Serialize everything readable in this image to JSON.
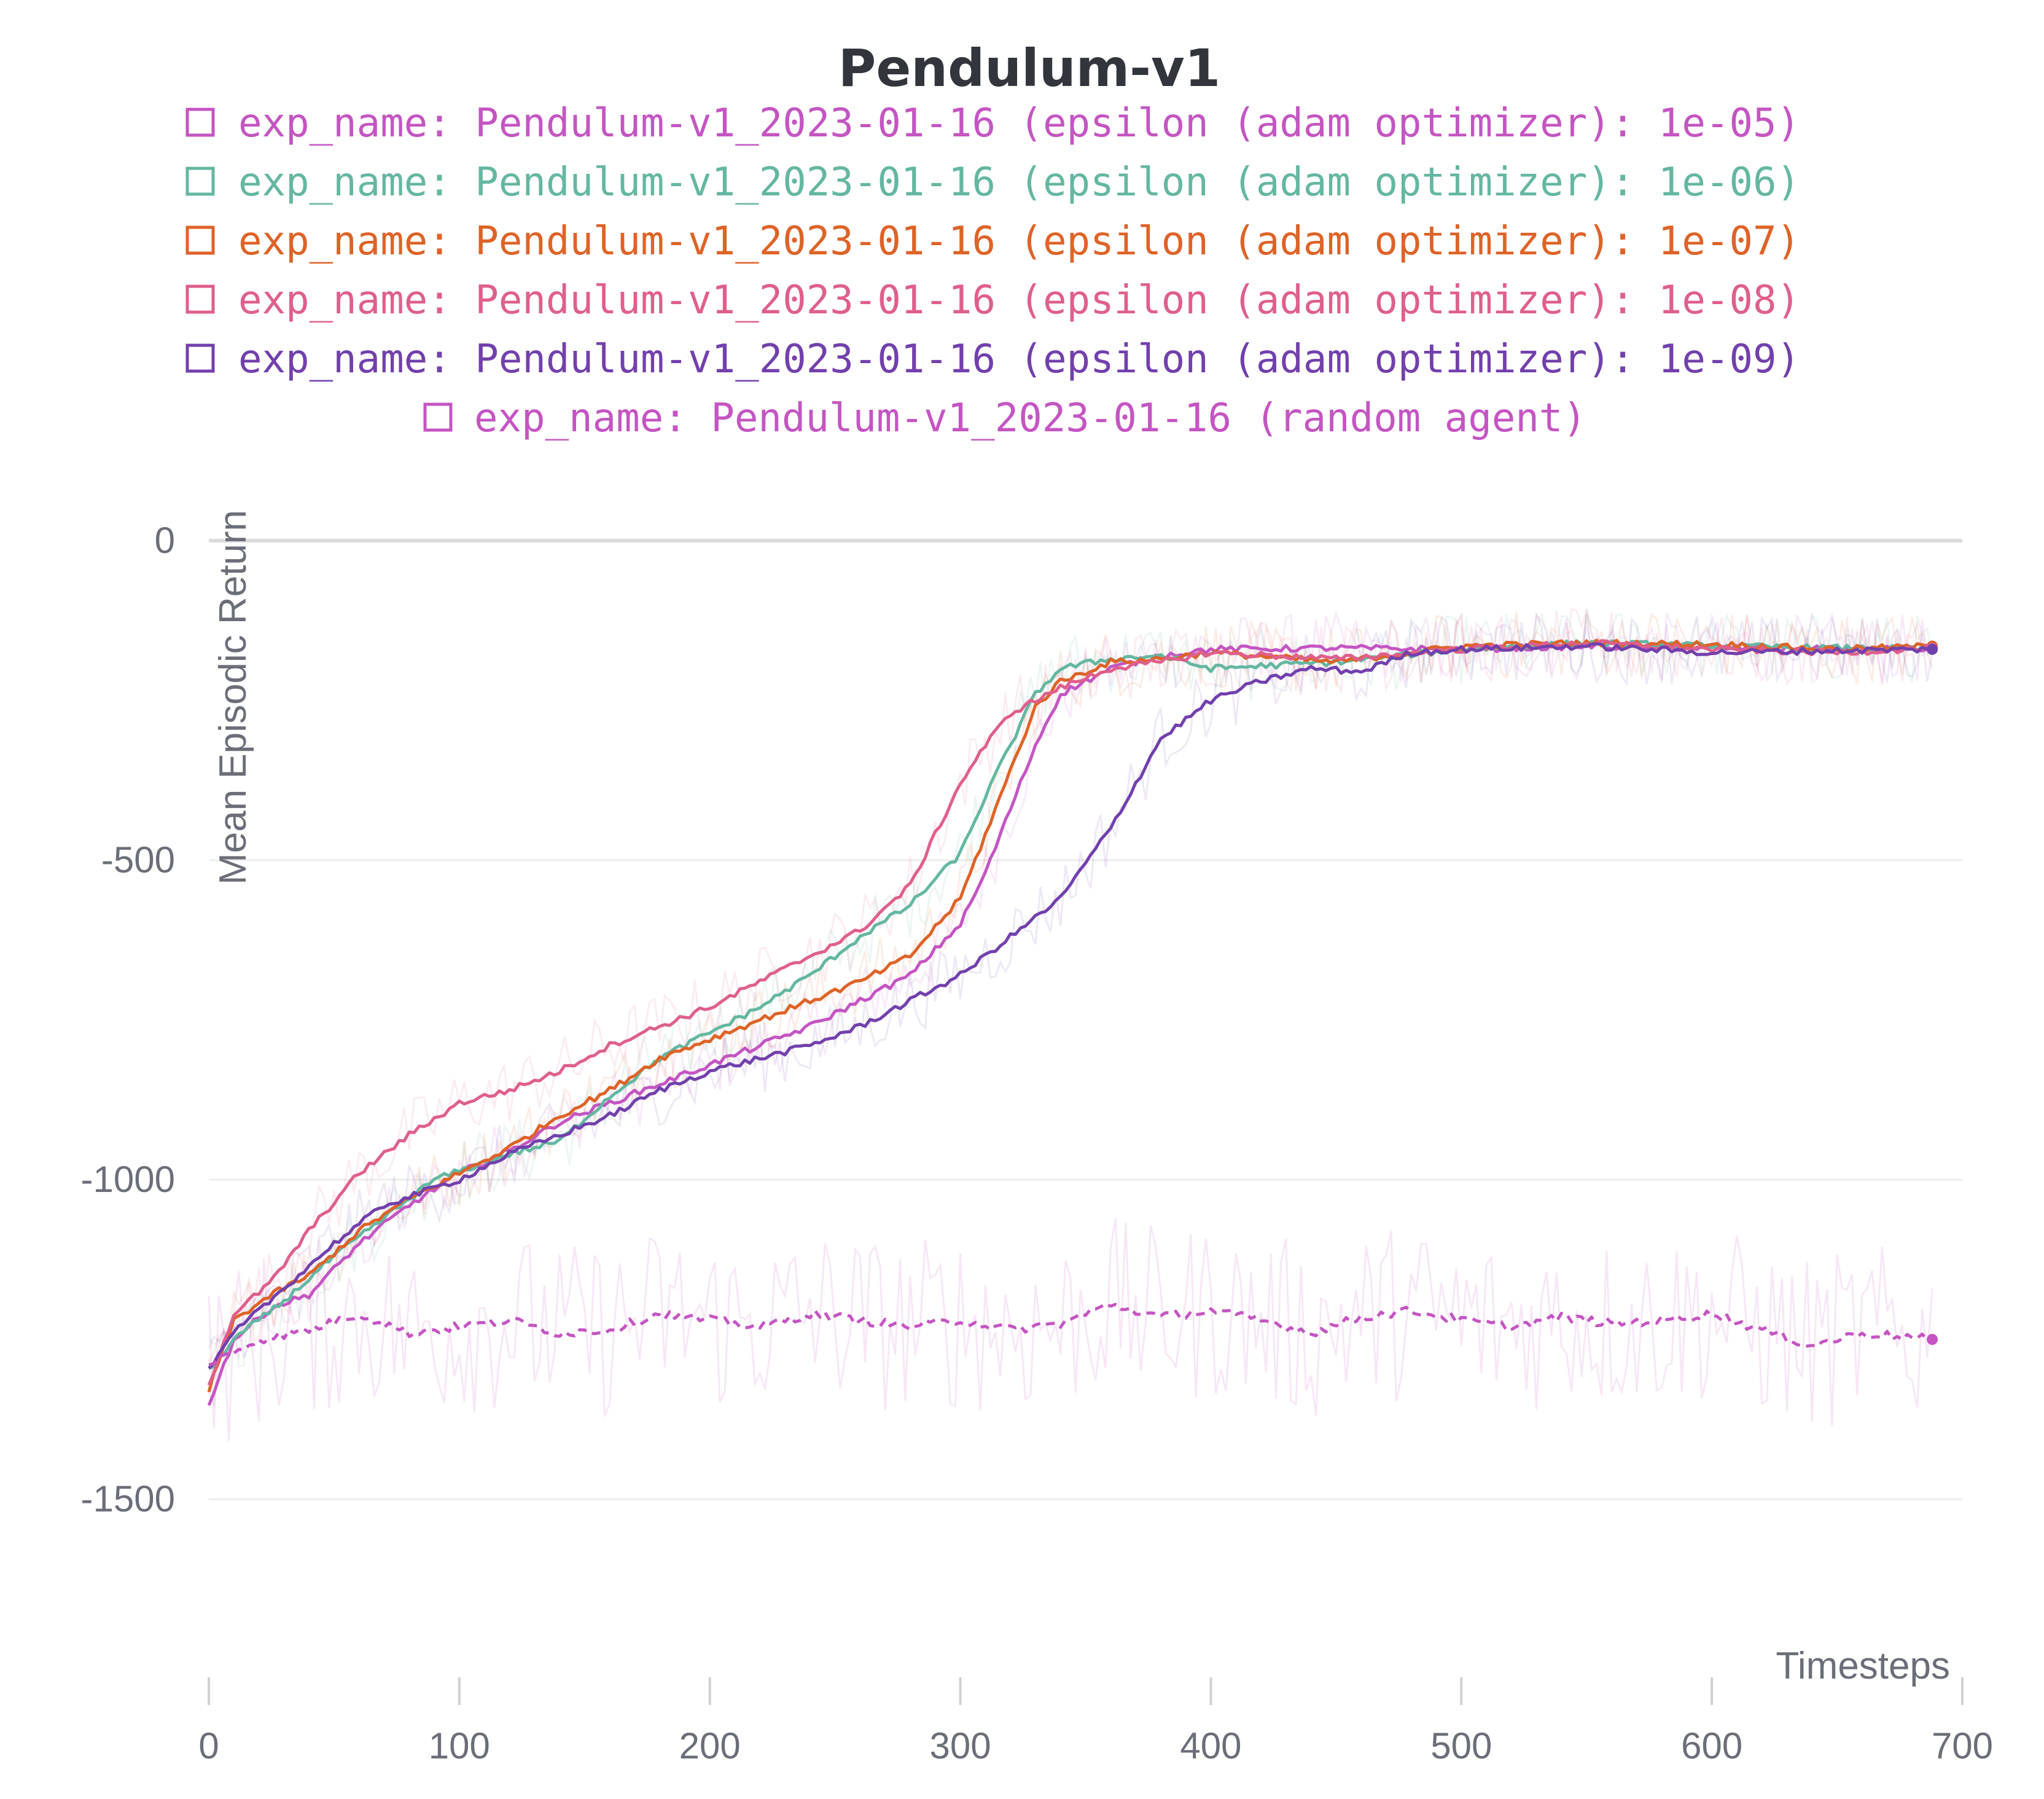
{
  "chart_data": {
    "type": "line",
    "title": "Pendulum-v1",
    "xlabel": "Timesteps",
    "ylabel": "Mean Episodic Return",
    "xlim": [
      0,
      700
    ],
    "ylim": [
      -1500,
      0
    ],
    "x_ticks": [
      "0",
      "100",
      "200",
      "300",
      "400",
      "500",
      "600",
      "700"
    ],
    "y_ticks": [
      "0",
      "-500",
      "-1000",
      "-1500"
    ],
    "grid": true,
    "legend_position": "top",
    "series": [
      {
        "name": "exp_name: Pendulum-v1_2023-01-16 (epsilon (adam optimizer): 1e-05)",
        "color": "#c455c2",
        "dashed": false,
        "points": [
          [
            0,
            -1350
          ],
          [
            10,
            -1250
          ],
          [
            25,
            -1200
          ],
          [
            40,
            -1180
          ],
          [
            60,
            -1100
          ],
          [
            80,
            -1040
          ],
          [
            100,
            -990
          ],
          [
            120,
            -955
          ],
          [
            140,
            -910
          ],
          [
            160,
            -880
          ],
          [
            180,
            -850
          ],
          [
            200,
            -820
          ],
          [
            220,
            -790
          ],
          [
            240,
            -760
          ],
          [
            260,
            -720
          ],
          [
            280,
            -680
          ],
          [
            300,
            -600
          ],
          [
            310,
            -520
          ],
          [
            320,
            -420
          ],
          [
            330,
            -320
          ],
          [
            340,
            -240
          ],
          [
            360,
            -200
          ],
          [
            380,
            -180
          ],
          [
            400,
            -170
          ],
          [
            450,
            -168
          ],
          [
            500,
            -170
          ],
          [
            550,
            -165
          ],
          [
            600,
            -168
          ],
          [
            650,
            -170
          ],
          [
            688,
            -170
          ]
        ]
      },
      {
        "name": "exp_name: Pendulum-v1_2023-01-16 (epsilon (adam optimizer): 1e-06)",
        "color": "#64b7a1",
        "dashed": false,
        "points": [
          [
            0,
            -1300
          ],
          [
            10,
            -1250
          ],
          [
            30,
            -1190
          ],
          [
            50,
            -1120
          ],
          [
            70,
            -1060
          ],
          [
            90,
            -1000
          ],
          [
            120,
            -960
          ],
          [
            140,
            -940
          ],
          [
            160,
            -870
          ],
          [
            180,
            -810
          ],
          [
            200,
            -770
          ],
          [
            220,
            -730
          ],
          [
            240,
            -680
          ],
          [
            260,
            -620
          ],
          [
            280,
            -570
          ],
          [
            300,
            -490
          ],
          [
            310,
            -400
          ],
          [
            320,
            -320
          ],
          [
            330,
            -240
          ],
          [
            340,
            -200
          ],
          [
            360,
            -185
          ],
          [
            380,
            -180
          ],
          [
            400,
            -200
          ],
          [
            450,
            -190
          ],
          [
            500,
            -170
          ],
          [
            550,
            -160
          ],
          [
            600,
            -165
          ],
          [
            650,
            -168
          ],
          [
            688,
            -170
          ]
        ]
      },
      {
        "name": "exp_name: Pendulum-v1_2023-01-16 (epsilon (adam optimizer): 1e-07)",
        "color": "#de6327",
        "dashed": false,
        "points": [
          [
            0,
            -1330
          ],
          [
            10,
            -1220
          ],
          [
            25,
            -1180
          ],
          [
            40,
            -1150
          ],
          [
            60,
            -1080
          ],
          [
            80,
            -1030
          ],
          [
            100,
            -990
          ],
          [
            120,
            -950
          ],
          [
            140,
            -900
          ],
          [
            160,
            -860
          ],
          [
            180,
            -810
          ],
          [
            200,
            -780
          ],
          [
            220,
            -750
          ],
          [
            240,
            -720
          ],
          [
            260,
            -690
          ],
          [
            280,
            -650
          ],
          [
            300,
            -560
          ],
          [
            310,
            -460
          ],
          [
            320,
            -360
          ],
          [
            330,
            -260
          ],
          [
            340,
            -220
          ],
          [
            360,
            -190
          ],
          [
            380,
            -185
          ],
          [
            400,
            -175
          ],
          [
            450,
            -190
          ],
          [
            500,
            -165
          ],
          [
            550,
            -160
          ],
          [
            600,
            -162
          ],
          [
            650,
            -170
          ],
          [
            688,
            -165
          ]
        ]
      },
      {
        "name": "exp_name: Pendulum-v1_2023-01-16 (epsilon (adam optimizer): 1e-08)",
        "color": "#df5f8c",
        "dashed": false,
        "points": [
          [
            0,
            -1320
          ],
          [
            10,
            -1210
          ],
          [
            25,
            -1160
          ],
          [
            40,
            -1080
          ],
          [
            60,
            -990
          ],
          [
            80,
            -930
          ],
          [
            100,
            -880
          ],
          [
            120,
            -860
          ],
          [
            140,
            -830
          ],
          [
            160,
            -790
          ],
          [
            180,
            -760
          ],
          [
            200,
            -730
          ],
          [
            220,
            -690
          ],
          [
            240,
            -650
          ],
          [
            260,
            -610
          ],
          [
            280,
            -540
          ],
          [
            290,
            -460
          ],
          [
            300,
            -380
          ],
          [
            310,
            -320
          ],
          [
            320,
            -270
          ],
          [
            340,
            -230
          ],
          [
            360,
            -200
          ],
          [
            380,
            -190
          ],
          [
            400,
            -175
          ],
          [
            450,
            -185
          ],
          [
            500,
            -170
          ],
          [
            550,
            -160
          ],
          [
            600,
            -170
          ],
          [
            650,
            -175
          ],
          [
            688,
            -168
          ]
        ]
      },
      {
        "name": "exp_name: Pendulum-v1_2023-01-16 (epsilon (adam optimizer): 1e-09)",
        "color": "#7240ac",
        "dashed": false,
        "points": [
          [
            0,
            -1300
          ],
          [
            10,
            -1240
          ],
          [
            30,
            -1170
          ],
          [
            50,
            -1100
          ],
          [
            70,
            -1040
          ],
          [
            100,
            -1000
          ],
          [
            120,
            -960
          ],
          [
            140,
            -930
          ],
          [
            160,
            -900
          ],
          [
            180,
            -860
          ],
          [
            200,
            -830
          ],
          [
            220,
            -810
          ],
          [
            240,
            -790
          ],
          [
            260,
            -760
          ],
          [
            280,
            -720
          ],
          [
            300,
            -680
          ],
          [
            320,
            -620
          ],
          [
            340,
            -560
          ],
          [
            360,
            -450
          ],
          [
            380,
            -310
          ],
          [
            400,
            -250
          ],
          [
            420,
            -220
          ],
          [
            440,
            -200
          ],
          [
            460,
            -205
          ],
          [
            480,
            -175
          ],
          [
            500,
            -170
          ],
          [
            550,
            -165
          ],
          [
            600,
            -175
          ],
          [
            650,
            -172
          ],
          [
            688,
            -170
          ]
        ]
      },
      {
        "name": "exp_name: Pendulum-v1_2023-01-16 (random agent)",
        "color": "#c455c2",
        "dashed": true,
        "points": [
          [
            0,
            -1290
          ],
          [
            20,
            -1250
          ],
          [
            40,
            -1235
          ],
          [
            60,
            -1210
          ],
          [
            80,
            -1240
          ],
          [
            100,
            -1230
          ],
          [
            120,
            -1220
          ],
          [
            140,
            -1240
          ],
          [
            160,
            -1235
          ],
          [
            180,
            -1210
          ],
          [
            200,
            -1220
          ],
          [
            220,
            -1230
          ],
          [
            240,
            -1210
          ],
          [
            260,
            -1220
          ],
          [
            280,
            -1230
          ],
          [
            300,
            -1220
          ],
          [
            320,
            -1235
          ],
          [
            340,
            -1225
          ],
          [
            360,
            -1195
          ],
          [
            380,
            -1215
          ],
          [
            400,
            -1205
          ],
          [
            420,
            -1220
          ],
          [
            440,
            -1240
          ],
          [
            460,
            -1215
          ],
          [
            480,
            -1205
          ],
          [
            500,
            -1220
          ],
          [
            520,
            -1230
          ],
          [
            540,
            -1215
          ],
          [
            560,
            -1225
          ],
          [
            580,
            -1220
          ],
          [
            600,
            -1210
          ],
          [
            620,
            -1235
          ],
          [
            640,
            -1260
          ],
          [
            660,
            -1240
          ],
          [
            688,
            -1250
          ]
        ]
      }
    ]
  }
}
